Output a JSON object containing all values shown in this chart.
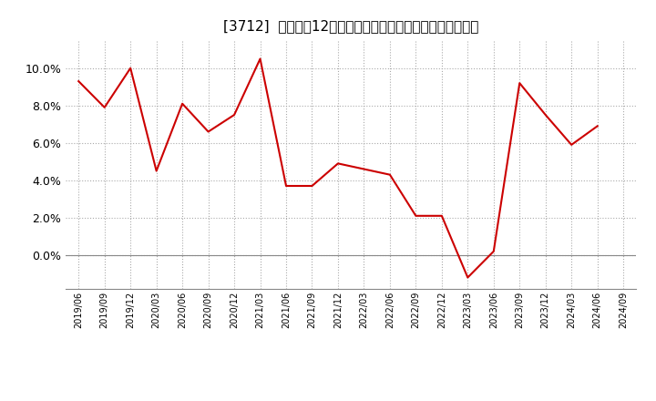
{
  "title": "[3712]  売上高の12か月移動合計の対前年同期増減率の推移",
  "title_fontsize": 11,
  "line_color": "#cc0000",
  "background_color": "#ffffff",
  "plot_bg_color": "#ffffff",
  "grid_color": "#aaaaaa",
  "ylim": [
    -0.018,
    0.115
  ],
  "yticks": [
    0.0,
    0.02,
    0.04,
    0.06,
    0.08,
    0.1
  ],
  "dates": [
    "2019/06",
    "2019/09",
    "2019/12",
    "2020/03",
    "2020/06",
    "2020/09",
    "2020/12",
    "2021/03",
    "2021/06",
    "2021/09",
    "2021/12",
    "2022/03",
    "2022/06",
    "2022/09",
    "2022/12",
    "2023/03",
    "2023/06",
    "2023/09",
    "2023/12",
    "2024/03",
    "2024/06",
    "2024/09"
  ],
  "values": [
    0.093,
    0.079,
    0.1,
    0.045,
    0.081,
    0.066,
    0.075,
    0.105,
    0.037,
    0.037,
    0.049,
    0.046,
    0.043,
    0.021,
    0.021,
    -0.012,
    0.002,
    0.092,
    0.075,
    0.059,
    0.069,
    null
  ]
}
